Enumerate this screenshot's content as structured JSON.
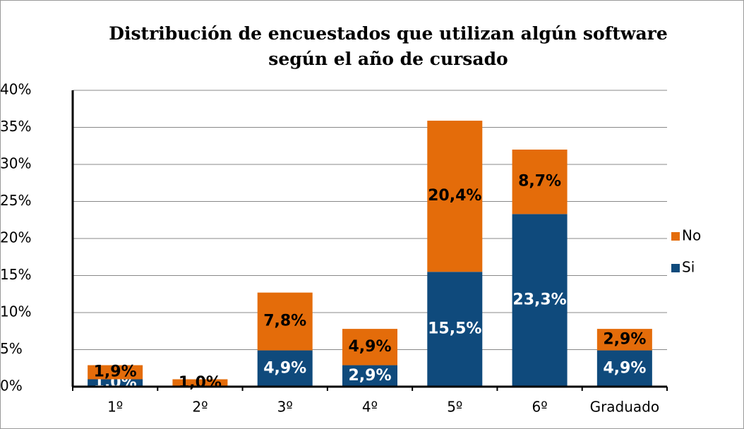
{
  "chart_data": {
    "type": "stacked_bar",
    "title": "Distribución de encuestados que utilizan algún software según el año de cursado",
    "categories": [
      "1º",
      "2º",
      "3º",
      "4º",
      "5º",
      "6º",
      "Graduado"
    ],
    "series": [
      {
        "name": "Si",
        "color": "#0f4a7c",
        "values": [
          1.0,
          null,
          4.9,
          2.9,
          15.5,
          23.3,
          4.9
        ],
        "value_labels": [
          "1,0%",
          null,
          "4,9%",
          "2,9%",
          "15,5%",
          "23,3%",
          "4,9%"
        ]
      },
      {
        "name": "No",
        "color": "#e46c0a",
        "values": [
          1.9,
          1.0,
          7.8,
          4.9,
          20.4,
          8.7,
          2.9
        ],
        "value_labels": [
          "1,9%",
          "1,0%",
          "7,8%",
          "4,9%",
          "20,4%",
          "8,7%",
          "2,9%"
        ]
      }
    ],
    "ylim": [
      0,
      40
    ],
    "yticks": [
      {
        "value": 0,
        "label": "0%"
      },
      {
        "value": 5,
        "label": "5%"
      },
      {
        "value": 10,
        "label": "10%"
      },
      {
        "value": 15,
        "label": "15%"
      },
      {
        "value": 20,
        "label": "20%"
      },
      {
        "value": 25,
        "label": "25%"
      },
      {
        "value": 30,
        "label": "30%"
      },
      {
        "value": 35,
        "label": "35%"
      },
      {
        "value": 40,
        "label": "40%"
      }
    ],
    "grid": true,
    "legend": "right"
  }
}
